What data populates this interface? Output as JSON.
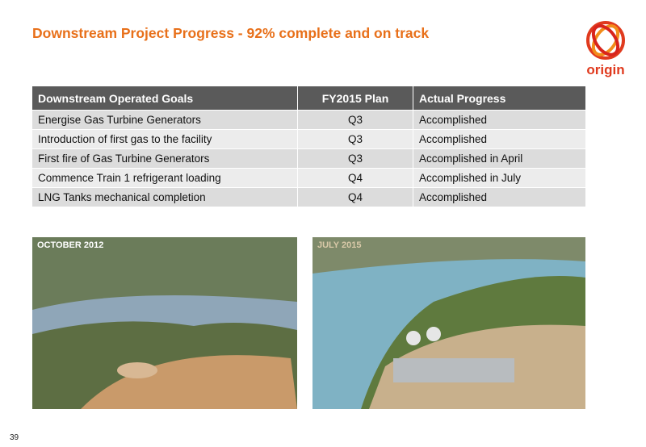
{
  "header": {
    "title": "Downstream Project Progress - 92% complete and on track",
    "logo": "origin"
  },
  "table": {
    "columns": [
      "Downstream Operated Goals",
      "FY2015 Plan",
      "Actual Progress"
    ],
    "rows": [
      [
        "Energise Gas Turbine Generators",
        "Q3",
        "Accomplished"
      ],
      [
        "Introduction of first gas to the facility",
        "Q3",
        "Accomplished"
      ],
      [
        "First fire of Gas Turbine Generators",
        "Q3",
        "Accomplished in April"
      ],
      [
        "Commence Train 1 refrigerant loading",
        "Q4",
        "Accomplished in July"
      ],
      [
        "LNG Tanks mechanical completion",
        "Q4",
        "Accomplished"
      ]
    ]
  },
  "photos": [
    {
      "caption": "OCTOBER 2012"
    },
    {
      "caption": "JULY 2015"
    }
  ],
  "footer": {
    "page": "39"
  }
}
